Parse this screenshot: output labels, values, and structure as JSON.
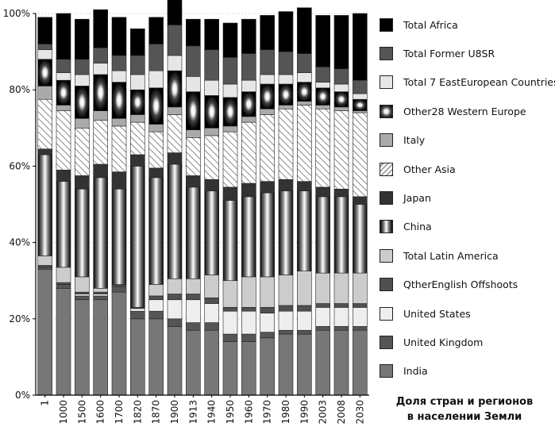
{
  "chart_data": {
    "type": "bar",
    "stacked": true,
    "title": "Доля стран и регионов в населении Земли",
    "title_lines": [
      "Доля стран и регионов",
      "в населении Земли"
    ],
    "ylabel": "",
    "xlabel": "",
    "ylim": [
      0,
      100
    ],
    "yticks": [
      "0%",
      "20%",
      "40%",
      "60%",
      "80%",
      "100%"
    ],
    "ytick_values": [
      0,
      20,
      40,
      60,
      80,
      100
    ],
    "legend_position": "right",
    "categories": [
      "1",
      "1000",
      "1500",
      "1600",
      "1700",
      "1820",
      "1870",
      "1900",
      "1913",
      "1940",
      "1950",
      "1960",
      "1970",
      "1980",
      "1990",
      "2003",
      "2008",
      "2030"
    ],
    "series": [
      {
        "name": "India",
        "pattern": "solid",
        "color": "#777777",
        "values": [
          33,
          28,
          25,
          25,
          27,
          20,
          20,
          18,
          17,
          17,
          14,
          14,
          15,
          16,
          16,
          17,
          17,
          17
        ]
      },
      {
        "name": "United Kingdom",
        "pattern": "solid",
        "color": "#555555",
        "values": [
          0.5,
          1,
          1,
          1,
          1.5,
          2,
          2,
          2,
          2,
          2,
          2,
          2,
          1.5,
          1,
          1,
          1,
          1,
          1
        ]
      },
      {
        "name": "United States",
        "pattern": "solid",
        "color": "#eeeeee",
        "values": [
          0,
          0,
          0.5,
          0.5,
          0,
          0.7,
          3,
          5,
          6,
          5,
          6,
          6,
          5,
          5,
          5,
          5,
          5,
          5
        ]
      },
      {
        "name": "QtherEnglish Offshoots",
        "pattern": "solid",
        "color": "#505050",
        "values": [
          0.5,
          0.5,
          0.5,
          0.5,
          0.5,
          0.3,
          1,
          1.5,
          1.5,
          1.5,
          1,
          1,
          1.5,
          1.5,
          1.5,
          1,
          1,
          1
        ]
      },
      {
        "name": "Total Latin America",
        "pattern": "solid",
        "color": "#cccccc",
        "values": [
          2.5,
          4,
          4,
          1,
          0,
          0,
          3,
          4,
          4,
          6,
          7,
          8,
          8,
          8,
          9,
          8,
          8,
          8
        ]
      },
      {
        "name": "China",
        "pattern": "gradient-h",
        "color": "#666666",
        "values": [
          26.5,
          22.5,
          23,
          29,
          25,
          37,
          28,
          30,
          24,
          22,
          21,
          21,
          22,
          22,
          21,
          20,
          20,
          18
        ]
      },
      {
        "name": "Japan",
        "pattern": "solid",
        "color": "#333333",
        "values": [
          1.5,
          3,
          3.5,
          3.5,
          4.5,
          3,
          2.5,
          3,
          3,
          3,
          3.5,
          3.5,
          3,
          3,
          2.5,
          2.5,
          2,
          2
        ]
      },
      {
        "name": "Other Asia",
        "pattern": "hatch",
        "color": "#999999",
        "values": [
          13,
          15.5,
          12.5,
          11.5,
          12,
          8.5,
          9.5,
          10,
          10,
          11.5,
          14.5,
          16,
          17.5,
          18.5,
          20,
          20.5,
          20.5,
          22
        ]
      },
      {
        "name": "Italy",
        "pattern": "solid",
        "color": "#aaaaaa",
        "values": [
          3.5,
          1.5,
          2.5,
          2.5,
          2,
          2,
          2,
          2,
          2,
          2,
          1.5,
          1.5,
          1.5,
          1,
          1,
          1,
          1,
          0.5
        ]
      },
      {
        "name": "Other28 Western Europe",
        "pattern": "glow",
        "color": "#000000",
        "values": [
          7,
          6.5,
          8.5,
          9.5,
          9.5,
          6.5,
          9.5,
          9.5,
          10,
          8.5,
          7.5,
          6.5,
          6.5,
          5.5,
          5,
          4.5,
          4,
          3
        ]
      },
      {
        "name": "Total 7 EastEuropean Countries",
        "pattern": "solid",
        "color": "#e6e6e6",
        "values": [
          2.5,
          2,
          3,
          3,
          3,
          4,
          4.5,
          4,
          4,
          4,
          3.5,
          3,
          2.5,
          2.5,
          2.5,
          1.5,
          2,
          1.5
        ]
      },
      {
        "name": "Total Former U8SR",
        "pattern": "solid",
        "color": "#555555",
        "values": [
          1.5,
          3.5,
          4,
          4,
          4,
          5,
          7,
          8,
          8,
          8,
          7,
          7,
          6.5,
          6,
          5,
          4,
          4,
          3.5
        ]
      },
      {
        "name": "Total Africa",
        "pattern": "solid",
        "color": "#000000",
        "values": [
          7,
          12,
          10.5,
          10,
          10,
          7,
          7,
          7,
          7,
          8,
          9,
          9,
          9,
          10.5,
          12,
          13.5,
          14,
          17.5
        ]
      }
    ]
  }
}
